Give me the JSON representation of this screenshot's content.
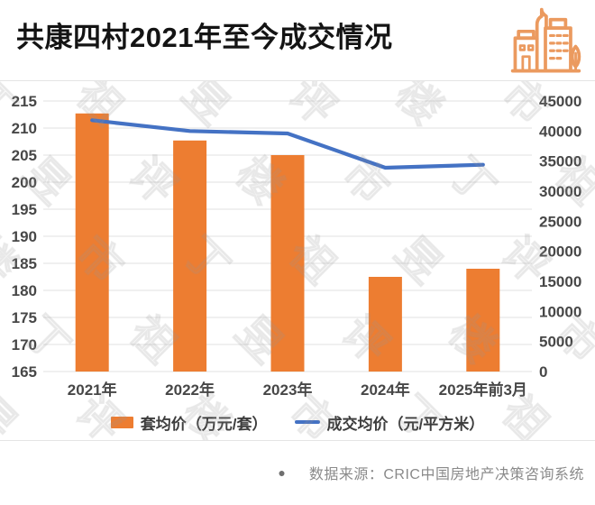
{
  "header": {
    "title": "共康四村2021年至今成交情况",
    "icon": "city-buildings-icon"
  },
  "chart_data": {
    "type": "combo-bar-line",
    "categories": [
      "2021年",
      "2022年",
      "2023年",
      "2024年",
      "2025年前3月"
    ],
    "series": [
      {
        "name": "套均价（万元/套）",
        "type": "bar",
        "axis": "left",
        "color": "#ED7D31",
        "values": [
          212.7,
          207.7,
          205.0,
          182.5,
          184.0
        ]
      },
      {
        "name": "成交均价（元/平方米）",
        "type": "line",
        "axis": "right",
        "color": "#4472C4",
        "values": [
          41800,
          40000,
          39600,
          33900,
          34400
        ]
      }
    ],
    "left_axis": {
      "min": 165,
      "max": 215,
      "step": 5,
      "ticks": [
        215,
        210,
        205,
        200,
        195,
        190,
        185,
        180,
        175,
        170,
        165
      ]
    },
    "right_axis": {
      "min": 0,
      "max": 45000,
      "step": 5000,
      "ticks": [
        45000,
        40000,
        35000,
        30000,
        25000,
        20000,
        15000,
        10000,
        5000,
        0
      ]
    },
    "grid": true,
    "legend_position": "bottom",
    "title": "共康四村2021年至今成交情况"
  },
  "watermark_text": "丁祖昱评楼市",
  "footer": {
    "bullet": "●",
    "source_label": "数据来源：CRIC中国房地产决策咨询系统"
  },
  "colors": {
    "bar": "#ED7D31",
    "line": "#4472C4",
    "icon_stroke": "#EB9A5F",
    "grid": "#E2E2E2",
    "axis_text": "#474747",
    "title_text": "#141414",
    "footer_text": "#8A8A8A"
  }
}
